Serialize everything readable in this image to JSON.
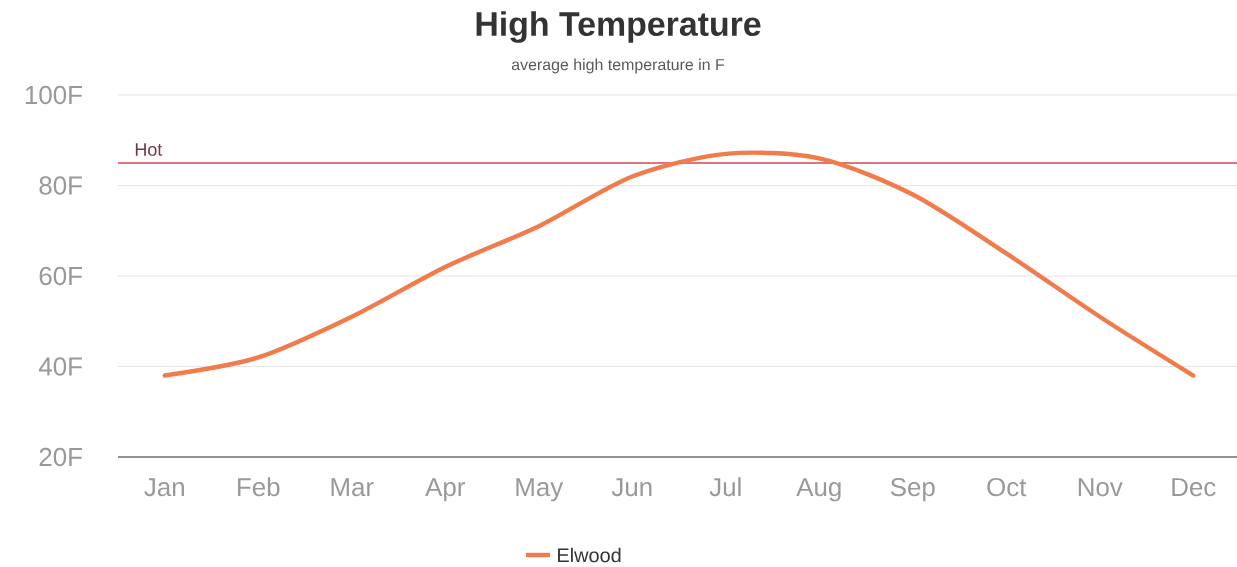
{
  "chart_data": {
    "type": "line",
    "title": "High Temperature",
    "subtitle": "average high temperature in F",
    "categories": [
      "Jan",
      "Feb",
      "Mar",
      "Apr",
      "May",
      "Jun",
      "Jul",
      "Aug",
      "Sep",
      "Oct",
      "Nov",
      "Dec"
    ],
    "series": [
      {
        "name": "Elwood",
        "color": "#f07b4b",
        "values": [
          38,
          42,
          51,
          62,
          71,
          82,
          87,
          86,
          78,
          65,
          51,
          38
        ]
      }
    ],
    "ylim": [
      20,
      100
    ],
    "yticks": [
      {
        "value": 20,
        "label": "20F"
      },
      {
        "value": 40,
        "label": "40F"
      },
      {
        "value": 60,
        "label": "60F"
      },
      {
        "value": 80,
        "label": "80F"
      },
      {
        "value": 100,
        "label": "100F"
      }
    ],
    "ref_lines": [
      {
        "axis": "y",
        "value": 85,
        "label": "Hot",
        "color": "#d9777f"
      }
    ],
    "grid": "y",
    "legend": "bottom",
    "marker": "none",
    "line_style": "solid"
  }
}
